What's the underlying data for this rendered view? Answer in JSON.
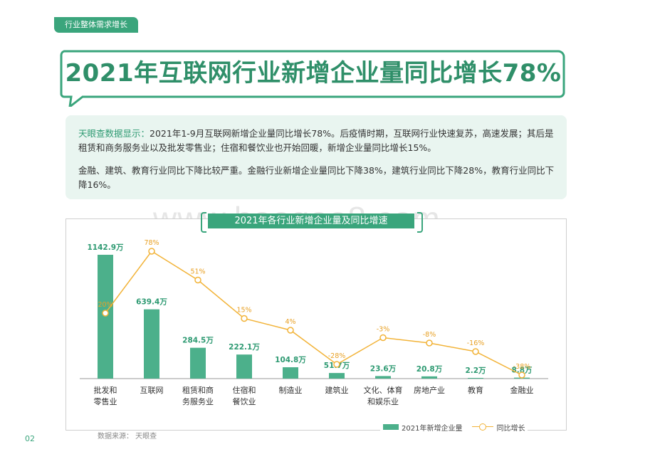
{
  "section_tab": "行业整体需求增长",
  "page_title": "2021年互联网行业新增企业量同比增长78%",
  "summary": {
    "p1_lead": "天眼查数据显示：",
    "p1_body": "2021年1-9月互联网新增企业量同比增长78%。后疫情时期，互联网行业快速复苏，高速发展；其后是租赁和商务服务业以及批发零售业；住宿和餐饮业也开始回暖，新增企业量同比增长15%。",
    "p2": "金融、建筑、教育行业同比下降比较严重。金融行业新增企业量同比下降38%，建筑行业同比下降28%，教育行业同比下降16%。"
  },
  "watermark": "www.baogao8.com",
  "chart_data": {
    "type": "bar",
    "title": "2021年各行业新增企业量及同比增速",
    "categories": [
      [
        "批发和",
        "零售业"
      ],
      [
        "互联网"
      ],
      [
        "租赁和商",
        "务服务业"
      ],
      [
        "住宿和",
        "餐饮业"
      ],
      [
        "制造业"
      ],
      [
        "建筑业"
      ],
      [
        "文化、体育",
        "和娱乐业"
      ],
      [
        "房地产业"
      ],
      [
        "教育"
      ],
      [
        "金融业"
      ]
    ],
    "series": [
      {
        "name": "2021年新增企业量",
        "type": "bar",
        "color": "#4cb08b",
        "values": [
          1142.9,
          639.4,
          284.5,
          222.1,
          104.8,
          51.7,
          23.6,
          20.8,
          2.2,
          8.8
        ],
        "labels": [
          "1142.9万",
          "639.4万",
          "284.5万",
          "222.1万",
          "104.8万",
          "51.7万",
          "23.6万",
          "20.8万",
          "2.2万",
          "8.8万"
        ]
      },
      {
        "name": "同比增长",
        "type": "line",
        "color": "#f2b338",
        "values": [
          20,
          78,
          51,
          15,
          4,
          -28,
          -3,
          -8,
          -16,
          -38
        ],
        "labels": [
          "20%",
          "78%",
          "51%",
          "15%",
          "4%",
          "-28%",
          "-3%",
          "-8%",
          "-16%",
          "-38%"
        ]
      }
    ]
  },
  "legend": {
    "bar": "2021年新增企业量",
    "line": "同比增长"
  },
  "source": "数据来源：  天眼查",
  "page_number": "02"
}
